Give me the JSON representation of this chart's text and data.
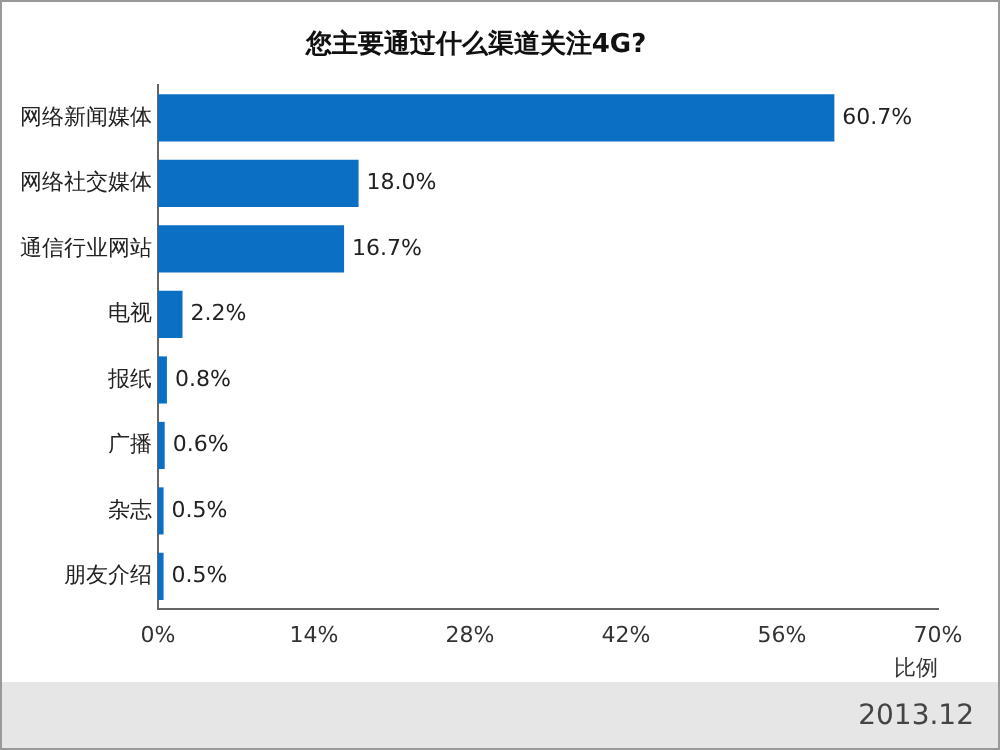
{
  "chart_data": {
    "type": "bar",
    "orientation": "horizontal",
    "title": "您主要通过什么渠道关注4G?",
    "categories": [
      "网络新闻媒体",
      "网络社交媒体",
      "通信行业网站",
      "电视",
      "报纸",
      "广播",
      "杂志",
      "朋友介绍"
    ],
    "values": [
      60.7,
      18.0,
      16.7,
      2.2,
      0.8,
      0.6,
      0.5,
      0.5
    ],
    "value_labels": [
      "60.7%",
      "18.0%",
      "16.7%",
      "2.2%",
      "0.8%",
      "0.6%",
      "0.5%",
      "0.5%"
    ],
    "color": "#0b6fc4",
    "xlabel": "比例",
    "xlim": [
      0,
      70
    ],
    "xticks": [
      {
        "value": 0,
        "label": "0%"
      },
      {
        "value": 14,
        "label": "14%"
      },
      {
        "value": 28,
        "label": "28%"
      },
      {
        "value": 42,
        "label": "42%"
      },
      {
        "value": 56,
        "label": "56%"
      },
      {
        "value": 70,
        "label": "70%"
      }
    ],
    "grid": false,
    "annotations": [
      "2013.12"
    ]
  }
}
